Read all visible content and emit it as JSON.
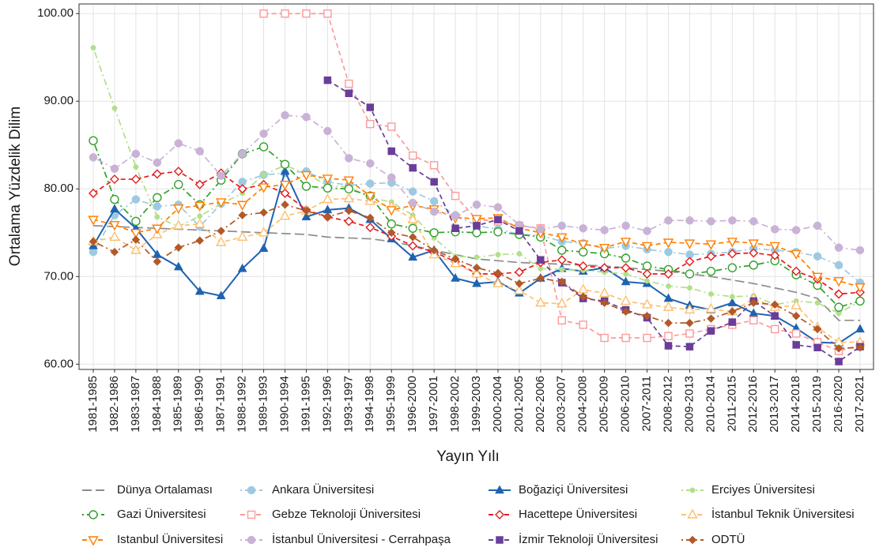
{
  "chart_data": {
    "type": "line",
    "x_label": "Yayın Yılı",
    "y_label": "Ortalama Yüzdelik Dilim",
    "categories": [
      "1981-1985",
      "1982-1986",
      "1983-1987",
      "1984-1988",
      "1985-1989",
      "1986-1990",
      "1987-1991",
      "1988-1992",
      "1989-1993",
      "1990-1994",
      "1991-1995",
      "1992-1996",
      "1993-1997",
      "1994-1998",
      "1995-1999",
      "1996-2000",
      "1997-2001",
      "1998-2002",
      "1999-2003",
      "2000-2004",
      "2001-2005",
      "2002-2006",
      "2003-2007",
      "2004-2008",
      "2005-2009",
      "2006-2010",
      "2007-2011",
      "2008-2012",
      "2009-2013",
      "2010-2014",
      "2011-2015",
      "2012-2016",
      "2013-2017",
      "2014-2018",
      "2015-2019",
      "2016-2020",
      "2017-2021"
    ],
    "ylim": [
      59.4,
      101.1
    ],
    "yticks": [
      {
        "value": 60,
        "label": "60.00"
      },
      {
        "value": 70,
        "label": "70.00"
      },
      {
        "value": 80,
        "label": "80.00"
      },
      {
        "value": 90,
        "label": "90.00"
      },
      {
        "value": 100,
        "label": "100.00"
      }
    ],
    "grid": true,
    "legend": "bottom",
    "series": [
      {
        "name": "Dünya Ortalaması",
        "color": "#8c8c8c",
        "marker": "none",
        "dash": "longdash",
        "values": [
          75.8,
          75.7,
          75.6,
          75.5,
          75.4,
          75.3,
          75.2,
          75.1,
          75.0,
          74.9,
          74.8,
          74.5,
          74.4,
          74.3,
          74.0,
          73.5,
          73.0,
          72.5,
          72.0,
          71.8,
          71.6,
          71.5,
          71.4,
          71.3,
          71.2,
          71.0,
          70.8,
          70.6,
          70.3,
          70.0,
          69.6,
          69.2,
          68.7,
          68.2,
          67.5,
          65.0,
          65.0
        ]
      },
      {
        "name": "Ankara Üniversitesi",
        "color": "#9ecae1",
        "marker": "circle",
        "dash": "dotdash",
        "values": [
          72.8,
          77.0,
          78.8,
          78.0,
          78.2,
          75.7,
          78.3,
          80.8,
          81.6,
          81.8,
          82.0,
          80.8,
          80.4,
          80.6,
          80.7,
          79.7,
          78.6,
          77.0,
          75.8,
          75.4,
          74.8,
          74.7,
          74.0,
          73.8,
          73.2,
          73.5,
          73.1,
          72.8,
          72.5,
          72.6,
          72.8,
          73.2,
          73.0,
          72.8,
          72.3,
          71.3,
          69.3
        ]
      },
      {
        "name": "Boğaziçi Üniversitesi",
        "color": "#1f63b0",
        "marker": "triangle",
        "dash": "solid",
        "values": [
          73.5,
          77.7,
          75.5,
          72.5,
          71.1,
          68.3,
          67.8,
          70.9,
          73.2,
          82.0,
          76.8,
          77.6,
          77.8,
          76.5,
          74.3,
          72.2,
          73.0,
          69.8,
          69.2,
          69.4,
          68.1,
          69.8,
          70.9,
          70.6,
          71.0,
          69.4,
          69.2,
          67.5,
          66.7,
          66.2,
          67.0,
          65.8,
          65.5,
          64.1,
          62.5,
          62.4,
          64.0
        ]
      },
      {
        "name": "Erciyes Üniversitesi",
        "color": "#b2df8a",
        "marker": "dot",
        "dash": "dotdash",
        "values": [
          96.1,
          89.2,
          82.5,
          76.8,
          75.7,
          76.9,
          78.3,
          79.5,
          81.6,
          82.7,
          81.7,
          80.4,
          80.2,
          79.0,
          78.5,
          77.0,
          74.4,
          72.3,
          72.2,
          72.5,
          72.6,
          70.9,
          70.8,
          70.7,
          70.5,
          70.3,
          69.5,
          68.9,
          68.7,
          68.0,
          67.7,
          67.8,
          66.8,
          67.2,
          67.0,
          65.8,
          67.2
        ]
      },
      {
        "name": "Gazi Üniversitesi",
        "color": "#33a02c",
        "marker": "circle-open",
        "dash": "dotdash",
        "values": [
          85.5,
          78.8,
          76.3,
          79.0,
          80.5,
          78.2,
          81.0,
          84.0,
          84.8,
          82.8,
          80.3,
          80.1,
          80.0,
          79.2,
          76.0,
          75.5,
          75.0,
          75.1,
          75.0,
          75.1,
          74.8,
          74.5,
          73.0,
          72.8,
          72.6,
          72.1,
          71.2,
          70.8,
          70.3,
          70.6,
          71.0,
          71.3,
          71.8,
          70.2,
          69.0,
          66.5,
          67.2
        ]
      },
      {
        "name": "Gebze Teknoloji Üniversitesi",
        "color": "#fb9a99",
        "marker": "square-open",
        "dash": "dashed",
        "values": [
          null,
          null,
          null,
          null,
          null,
          null,
          null,
          null,
          100,
          100,
          100,
          100,
          92.0,
          87.4,
          87.1,
          83.8,
          82.7,
          79.2,
          76.5,
          76.3,
          75.8,
          75.5,
          65.0,
          64.5,
          63.0,
          63.0,
          63.0,
          63.2,
          63.5,
          64.0,
          64.5,
          65.0,
          64.0,
          63.5,
          62.5,
          61.5,
          62.2
        ]
      },
      {
        "name": "Hacettepe Üniversitesi",
        "color": "#e31a1c",
        "marker": "diamond-open",
        "dash": "dashed",
        "values": [
          79.5,
          81.1,
          81.1,
          81.7,
          82.0,
          80.5,
          81.8,
          80.0,
          80.5,
          79.5,
          77.6,
          76.8,
          76.3,
          75.6,
          74.6,
          73.5,
          72.8,
          71.7,
          70.3,
          70.3,
          70.5,
          71.6,
          71.9,
          71.2,
          71.0,
          71.0,
          70.3,
          70.3,
          71.7,
          72.3,
          72.6,
          72.7,
          72.4,
          70.6,
          69.7,
          68.0,
          68.2
        ]
      },
      {
        "name": "İstanbul Teknik Üniversitesi",
        "color": "#fdbf6f",
        "marker": "triangle-open",
        "dash": "dashed",
        "values": [
          74.0,
          74.5,
          73.0,
          74.8,
          75.8,
          76.0,
          73.9,
          74.5,
          75.0,
          76.9,
          77.5,
          78.8,
          78.9,
          78.6,
          78.0,
          76.5,
          72.5,
          71.5,
          70.3,
          69.2,
          68.4,
          67.0,
          66.9,
          68.5,
          68.1,
          67.2,
          66.8,
          66.5,
          66.2,
          66.3,
          66.0,
          67.5,
          66.5,
          66.7,
          64.2,
          62.5,
          62.5
        ]
      },
      {
        "name": "Istanbul Üniversitesi",
        "color": "#ff7f00",
        "marker": "triangle-down-open",
        "dash": "dashed",
        "values": [
          76.5,
          75.9,
          75.0,
          75.5,
          77.8,
          78.1,
          78.5,
          78.2,
          80.2,
          80.5,
          81.6,
          81.2,
          81.0,
          79.2,
          77.6,
          78.1,
          77.7,
          76.7,
          76.6,
          76.7,
          75.5,
          75.0,
          74.5,
          73.7,
          73.3,
          74.0,
          73.5,
          73.9,
          73.8,
          73.7,
          74.0,
          73.8,
          73.5,
          72.6,
          70.0,
          69.5,
          68.8
        ]
      },
      {
        "name": "İstanbul Üniversitesi - Cerrahpaşa",
        "color": "#cab2d6",
        "marker": "circle",
        "dash": "dotdash",
        "values": [
          83.6,
          82.3,
          84.0,
          83.0,
          85.2,
          84.3,
          81.5,
          84.0,
          86.3,
          88.4,
          88.2,
          86.6,
          83.5,
          82.9,
          81.3,
          78.4,
          77.4,
          76.9,
          78.2,
          77.9,
          75.9,
          75.4,
          75.8,
          75.5,
          75.3,
          75.8,
          75.2,
          76.4,
          76.4,
          76.3,
          76.4,
          76.3,
          75.4,
          75.3,
          75.8,
          73.3,
          73.0
        ]
      },
      {
        "name": "İzmir Teknoloji Üniversitesi",
        "color": "#6a3d9a",
        "marker": "square",
        "dash": "dashed",
        "values": [
          null,
          null,
          null,
          null,
          null,
          null,
          null,
          null,
          null,
          null,
          null,
          92.4,
          90.9,
          89.3,
          84.3,
          82.4,
          80.8,
          75.5,
          75.8,
          76.5,
          75.2,
          71.9,
          69.3,
          67.5,
          67.2,
          66.2,
          65.3,
          62.1,
          62.0,
          63.8,
          64.8,
          67.2,
          65.5,
          62.2,
          61.9,
          60.3,
          62.0
        ]
      },
      {
        "name": "ODTÜ",
        "color": "#b15928",
        "marker": "diamond",
        "dash": "dotdash",
        "values": [
          74.0,
          72.8,
          74.2,
          71.7,
          73.3,
          74.1,
          75.2,
          77.0,
          77.3,
          78.2,
          77.5,
          76.8,
          77.5,
          76.7,
          75.0,
          74.5,
          73.0,
          72.0,
          71.0,
          70.4,
          69.2,
          69.8,
          69.4,
          67.7,
          67.0,
          66.0,
          65.5,
          64.7,
          64.7,
          65.2,
          66.0,
          67.0,
          66.8,
          65.5,
          64.0,
          61.8,
          61.9
        ]
      }
    ]
  }
}
